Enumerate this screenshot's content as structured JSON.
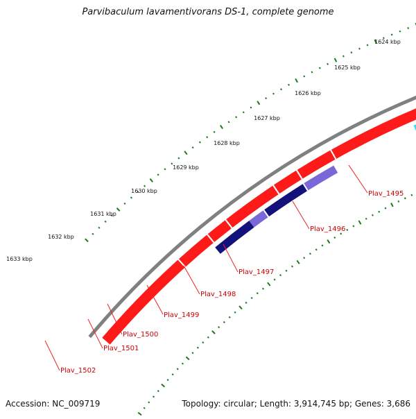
{
  "title": "Parvibaculum lavamentivorans DS-1, complete genome",
  "footer": {
    "accession": "Accession: NC_009719",
    "summary": "Topology: circular; Length: 3,914,745 bp; Genes: 3,686"
  },
  "scale_labels": [
    "1624 kbp",
    "1625 kbp",
    "1626 kbp",
    "1627 kbp",
    "1628 kbp",
    "1629 kbp",
    "1630 kbp",
    "1631 kbp",
    "1632 kbp",
    "1633 kbp"
  ],
  "gene_labels": [
    "Plav_1495",
    "Plav_1496",
    "Plav_1497",
    "Plav_1498",
    "Plav_1499",
    "Plav_1500",
    "Plav_1501",
    "Plav_1502"
  ],
  "colors": {
    "backbone": "#808080",
    "forward_gene": "#ff1a1a",
    "grey_gene": "#c8c8c8",
    "cyan_gene": "#22e6ee",
    "steel_gene": "#4f7fb3",
    "slate_gene": "#7a68d8",
    "navy_gene": "#12127a",
    "tick": "#1a7a1a",
    "label_text": "#cc0000",
    "leader_line": "#ee2222"
  }
}
